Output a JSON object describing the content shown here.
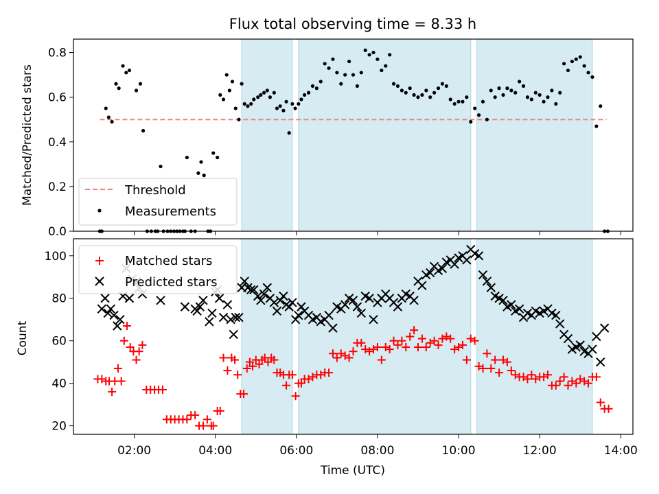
{
  "chart_data": [
    {
      "type": "scatter",
      "title": "Flux total observing time = 8.33 h",
      "xlabel": "",
      "ylabel": "Matched/Predicted stars",
      "xlim": [
        0.5,
        14.3
      ],
      "ylim": [
        0,
        0.86
      ],
      "yticks": [
        0.0,
        0.2,
        0.4,
        0.6,
        0.8
      ],
      "ytick_labels": [
        "0.0",
        "0.2",
        "0.4",
        "0.6",
        "0.8"
      ],
      "xticks": [
        2,
        4,
        6,
        8,
        10,
        12,
        14
      ],
      "shaded_spans": [
        [
          4.65,
          5.9
        ],
        [
          6.05,
          10.3
        ],
        [
          10.45,
          13.3
        ]
      ],
      "legend": {
        "placement": "lower-left",
        "entries": [
          "Threshold",
          "Measurements"
        ]
      },
      "threshold": {
        "name": "Threshold",
        "y": 0.5,
        "x_range": [
          1.15,
          13.65
        ],
        "color": "#f08080"
      },
      "series": [
        {
          "name": "Measurements",
          "color": "#000000",
          "x": [
            1.15,
            1.2,
            1.3,
            1.37,
            1.45,
            1.55,
            1.62,
            1.72,
            1.8,
            1.88,
            2.05,
            2.15,
            2.22,
            2.32,
            2.42,
            2.52,
            2.58,
            2.65,
            2.72,
            2.82,
            2.9,
            2.98,
            3.05,
            3.12,
            3.2,
            3.25,
            3.3,
            3.4,
            3.5,
            3.58,
            3.65,
            3.72,
            3.82,
            3.88,
            3.95,
            4.05,
            4.12,
            4.2,
            4.28,
            4.35,
            4.42,
            4.5,
            4.58,
            4.65,
            4.72,
            4.8,
            4.88,
            4.95,
            5.05,
            5.12,
            5.2,
            5.28,
            5.35,
            5.45,
            5.52,
            5.6,
            5.68,
            5.75,
            5.82,
            5.9,
            5.97,
            6.05,
            6.12,
            6.2,
            6.3,
            6.4,
            6.5,
            6.6,
            6.7,
            6.8,
            6.9,
            7.0,
            7.1,
            7.2,
            7.3,
            7.4,
            7.5,
            7.6,
            7.7,
            7.8,
            7.9,
            8.0,
            8.1,
            8.2,
            8.3,
            8.4,
            8.5,
            8.6,
            8.7,
            8.8,
            8.9,
            9.0,
            9.1,
            9.2,
            9.3,
            9.4,
            9.5,
            9.6,
            9.7,
            9.8,
            9.9,
            10.0,
            10.1,
            10.2,
            10.3,
            10.4,
            10.5,
            10.6,
            10.7,
            10.8,
            10.9,
            11.0,
            11.1,
            11.2,
            11.3,
            11.4,
            11.5,
            11.6,
            11.7,
            11.8,
            11.9,
            12.0,
            12.1,
            12.2,
            12.3,
            12.4,
            12.5,
            12.6,
            12.7,
            12.8,
            12.9,
            13.0,
            13.1,
            13.2,
            13.3,
            13.4,
            13.5,
            13.6,
            13.68
          ],
          "y": [
            0.0,
            0.0,
            0.55,
            0.51,
            0.49,
            0.66,
            0.64,
            0.74,
            0.71,
            0.72,
            0.63,
            0.66,
            0.45,
            0.0,
            0.0,
            0.0,
            0.0,
            0.29,
            0.0,
            0.0,
            0.0,
            0.0,
            0.0,
            0.0,
            0.0,
            0.0,
            0.33,
            0.0,
            0.0,
            0.26,
            0.31,
            0.25,
            0.0,
            0.0,
            0.35,
            0.33,
            0.61,
            0.59,
            0.7,
            0.63,
            0.67,
            0.55,
            0.5,
            0.66,
            0.57,
            0.56,
            0.57,
            0.59,
            0.6,
            0.61,
            0.62,
            0.63,
            0.6,
            0.62,
            0.55,
            0.56,
            0.54,
            0.58,
            0.44,
            0.57,
            0.55,
            0.57,
            0.59,
            0.61,
            0.62,
            0.65,
            0.64,
            0.67,
            0.75,
            0.73,
            0.77,
            0.71,
            0.66,
            0.7,
            0.76,
            0.7,
            0.65,
            0.71,
            0.81,
            0.79,
            0.8,
            0.77,
            0.72,
            0.74,
            0.79,
            0.66,
            0.65,
            0.63,
            0.62,
            0.64,
            0.61,
            0.6,
            0.61,
            0.63,
            0.6,
            0.62,
            0.64,
            0.66,
            0.65,
            0.59,
            0.57,
            0.58,
            0.58,
            0.6,
            0.49,
            0.55,
            0.52,
            0.58,
            0.5,
            0.63,
            0.6,
            0.64,
            0.61,
            0.64,
            0.63,
            0.62,
            0.67,
            0.65,
            0.6,
            0.59,
            0.62,
            0.61,
            0.58,
            0.6,
            0.63,
            0.57,
            0.62,
            0.75,
            0.72,
            0.76,
            0.77,
            0.78,
            0.74,
            0.71,
            0.69,
            0.47,
            0.56,
            0.0,
            0.0
          ]
        }
      ]
    },
    {
      "type": "scatter",
      "title": "",
      "xlabel": "Time (UTC)",
      "ylabel": "Count",
      "xlim": [
        0.5,
        14.3
      ],
      "ylim": [
        16,
        108
      ],
      "yticks": [
        20,
        40,
        60,
        80,
        100
      ],
      "ytick_labels": [
        "20",
        "40",
        "60",
        "80",
        "100"
      ],
      "xticks": [
        2,
        4,
        6,
        8,
        10,
        12,
        14
      ],
      "xtick_labels": [
        "02:00",
        "04:00",
        "06:00",
        "08:00",
        "10:00",
        "12:00",
        "14:00"
      ],
      "shaded_spans": [
        [
          4.65,
          5.9
        ],
        [
          6.05,
          10.3
        ],
        [
          10.45,
          13.3
        ]
      ],
      "legend": {
        "placement": "top-left",
        "entries": [
          "Matched stars",
          "Predicted stars"
        ]
      },
      "series": [
        {
          "name": "Matched stars",
          "marker": "+",
          "color": "#ff0000",
          "x": [
            1.1,
            1.2,
            1.3,
            1.38,
            1.45,
            1.52,
            1.6,
            1.68,
            1.75,
            1.82,
            1.9,
            1.98,
            2.05,
            2.12,
            2.2,
            2.3,
            2.4,
            2.5,
            2.6,
            2.7,
            2.8,
            2.9,
            3.0,
            3.1,
            3.2,
            3.3,
            3.4,
            3.5,
            3.6,
            3.7,
            3.8,
            3.9,
            3.95,
            4.05,
            4.12,
            4.2,
            4.3,
            4.4,
            4.48,
            4.55,
            4.62,
            4.7,
            4.78,
            4.85,
            4.92,
            5.0,
            5.08,
            5.15,
            5.22,
            5.3,
            5.38,
            5.45,
            5.52,
            5.6,
            5.68,
            5.75,
            5.82,
            5.9,
            5.98,
            6.05,
            6.12,
            6.2,
            6.3,
            6.4,
            6.5,
            6.6,
            6.7,
            6.8,
            6.9,
            7.0,
            7.1,
            7.2,
            7.3,
            7.4,
            7.5,
            7.6,
            7.7,
            7.8,
            7.9,
            8.0,
            8.1,
            8.2,
            8.3,
            8.4,
            8.5,
            8.6,
            8.7,
            8.8,
            8.9,
            9.0,
            9.1,
            9.2,
            9.3,
            9.4,
            9.5,
            9.6,
            9.7,
            9.8,
            9.9,
            10.0,
            10.1,
            10.2,
            10.3,
            10.4,
            10.5,
            10.6,
            10.7,
            10.8,
            10.9,
            11.0,
            11.1,
            11.2,
            11.3,
            11.4,
            11.5,
            11.6,
            11.7,
            11.8,
            11.9,
            12.0,
            12.1,
            12.2,
            12.3,
            12.4,
            12.5,
            12.6,
            12.7,
            12.8,
            12.9,
            13.0,
            13.1,
            13.2,
            13.3,
            13.4,
            13.5,
            13.6,
            13.7
          ],
          "y": [
            42,
            42,
            41,
            41,
            36,
            41,
            47,
            41,
            60,
            67,
            57,
            55,
            51,
            55,
            58,
            37,
            37,
            37,
            37,
            37,
            23,
            23,
            23,
            23,
            23,
            23,
            25,
            25,
            20,
            20,
            23,
            20,
            20,
            27,
            27,
            52,
            46,
            52,
            51,
            44,
            35,
            35,
            47,
            50,
            48,
            51,
            49,
            51,
            52,
            50,
            52,
            51,
            45,
            45,
            44,
            39,
            44,
            44,
            34,
            40,
            40,
            42,
            42,
            43,
            44,
            44,
            45,
            45,
            54,
            52,
            54,
            53,
            52,
            55,
            59,
            59,
            56,
            55,
            56,
            57,
            51,
            57,
            56,
            60,
            58,
            60,
            57,
            62,
            65,
            57,
            61,
            57,
            59,
            60,
            58,
            61,
            62,
            61,
            56,
            57,
            58,
            51,
            61,
            60,
            48,
            47,
            54,
            47,
            51,
            45,
            51,
            50,
            46,
            44,
            43,
            43,
            42,
            44,
            42,
            43,
            43,
            44,
            39,
            39,
            41,
            43,
            39,
            41,
            40,
            42,
            41,
            40,
            43,
            43,
            31,
            28,
            28
          ],
          "unit": "count"
        },
        {
          "name": "Predicted stars",
          "marker": "x",
          "color": "#000000",
          "x": [
            1.2,
            1.28,
            1.35,
            1.42,
            1.5,
            1.58,
            1.65,
            1.72,
            1.8,
            1.88,
            1.95,
            2.05,
            2.12,
            2.2,
            2.65,
            3.25,
            3.5,
            3.55,
            3.62,
            3.7,
            3.85,
            3.92,
            4.0,
            4.05,
            4.1,
            4.2,
            4.3,
            4.38,
            4.45,
            4.5,
            4.58,
            4.65,
            4.72,
            4.8,
            4.88,
            4.95,
            5.05,
            5.12,
            5.2,
            5.28,
            5.35,
            5.45,
            5.52,
            5.6,
            5.68,
            5.75,
            5.82,
            5.9,
            5.98,
            6.05,
            6.12,
            6.2,
            6.3,
            6.4,
            6.5,
            6.6,
            6.7,
            6.8,
            6.9,
            7.0,
            7.1,
            7.2,
            7.3,
            7.4,
            7.5,
            7.6,
            7.7,
            7.8,
            7.9,
            8.0,
            8.1,
            8.2,
            8.3,
            8.4,
            8.5,
            8.6,
            8.7,
            8.8,
            8.9,
            9.0,
            9.1,
            9.2,
            9.3,
            9.4,
            9.5,
            9.6,
            9.7,
            9.8,
            9.9,
            10.0,
            10.1,
            10.2,
            10.3,
            10.4,
            10.5,
            10.6,
            10.7,
            10.8,
            10.9,
            11.0,
            11.1,
            11.2,
            11.3,
            11.4,
            11.5,
            11.6,
            11.7,
            11.8,
            11.9,
            12.0,
            12.1,
            12.2,
            12.3,
            12.4,
            12.5,
            12.6,
            12.7,
            12.8,
            12.9,
            13.0,
            13.1,
            13.2,
            13.3,
            13.4,
            13.5,
            13.6
          ],
          "y": [
            75,
            80,
            73,
            75,
            72,
            67,
            70,
            81,
            94,
            80,
            89,
            88,
            85,
            82,
            79,
            76,
            75,
            74,
            76,
            79,
            69,
            73,
            83,
            84,
            80,
            71,
            77,
            70,
            63,
            71,
            71,
            85,
            88,
            85,
            84,
            84,
            81,
            79,
            82,
            85,
            80,
            78,
            74,
            79,
            81,
            77,
            76,
            78,
            70,
            72,
            76,
            74,
            72,
            70,
            71,
            69,
            70,
            72,
            66,
            76,
            75,
            77,
            80,
            79,
            76,
            73,
            81,
            80,
            70,
            78,
            80,
            82,
            80,
            78,
            76,
            80,
            82,
            81,
            79,
            88,
            86,
            91,
            92,
            95,
            93,
            94,
            97,
            98,
            96,
            99,
            100,
            98,
            103,
            101,
            100,
            91,
            88,
            85,
            81,
            80,
            79,
            76,
            77,
            74,
            75,
            71,
            73,
            72,
            74,
            73,
            74,
            75,
            73,
            72,
            68,
            63,
            61,
            56,
            57,
            58,
            55,
            54,
            56,
            62,
            50,
            66
          ]
        }
      ]
    }
  ]
}
